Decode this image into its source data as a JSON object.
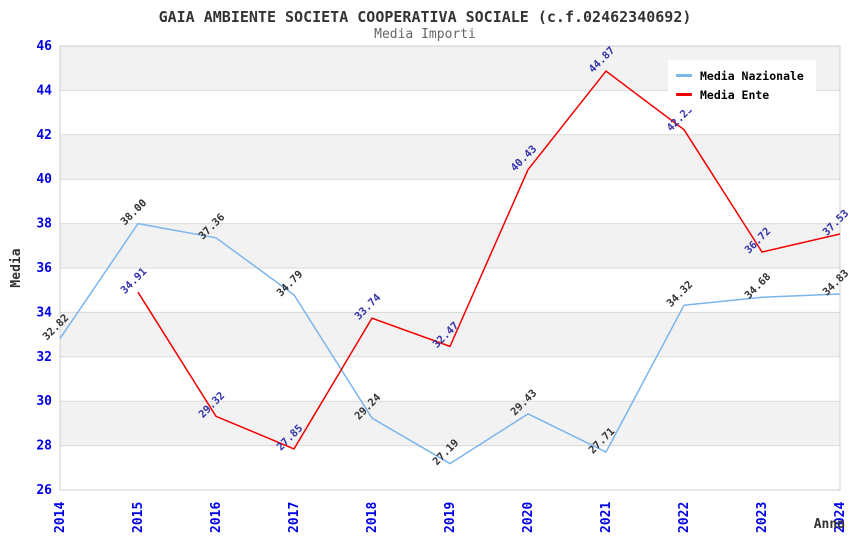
{
  "title": "GAIA AMBIENTE SOCIETA COOPERATIVA SOCIALE (c.f.02462340692)",
  "subtitle": "Media Importi",
  "chart_data": {
    "type": "line",
    "x": [
      2014,
      2015,
      2016,
      2017,
      2018,
      2019,
      2020,
      2021,
      2022,
      2023,
      2024
    ],
    "xlabel": "Anno",
    "ylabel": "Media",
    "ylim": [
      26,
      46
    ],
    "ytick_step": 2,
    "yticks": [
      26,
      28,
      30,
      32,
      34,
      36,
      38,
      40,
      42,
      44,
      46
    ],
    "grid": true,
    "band_fill": "#f2f2f2",
    "gridline_color": "#d9d9d9",
    "plot_border_color": "#cfcfcf",
    "tick_label_color": "#0000e6",
    "axis_title_color": "#333333",
    "legend_position": "top-right",
    "series": [
      {
        "name": "Media Nazionale",
        "color": "#7cb5ec",
        "label_color": "#333333",
        "values": [
          32.82,
          38.0,
          37.36,
          34.79,
          29.24,
          27.19,
          29.43,
          27.71,
          34.32,
          34.68,
          34.83
        ]
      },
      {
        "name": "Media Ente",
        "color": "#f20000",
        "label_color": "#3333aa",
        "values": [
          null,
          34.91,
          29.32,
          27.85,
          33.74,
          32.47,
          40.43,
          44.87,
          42.23,
          36.72,
          37.53
        ]
      }
    ]
  }
}
